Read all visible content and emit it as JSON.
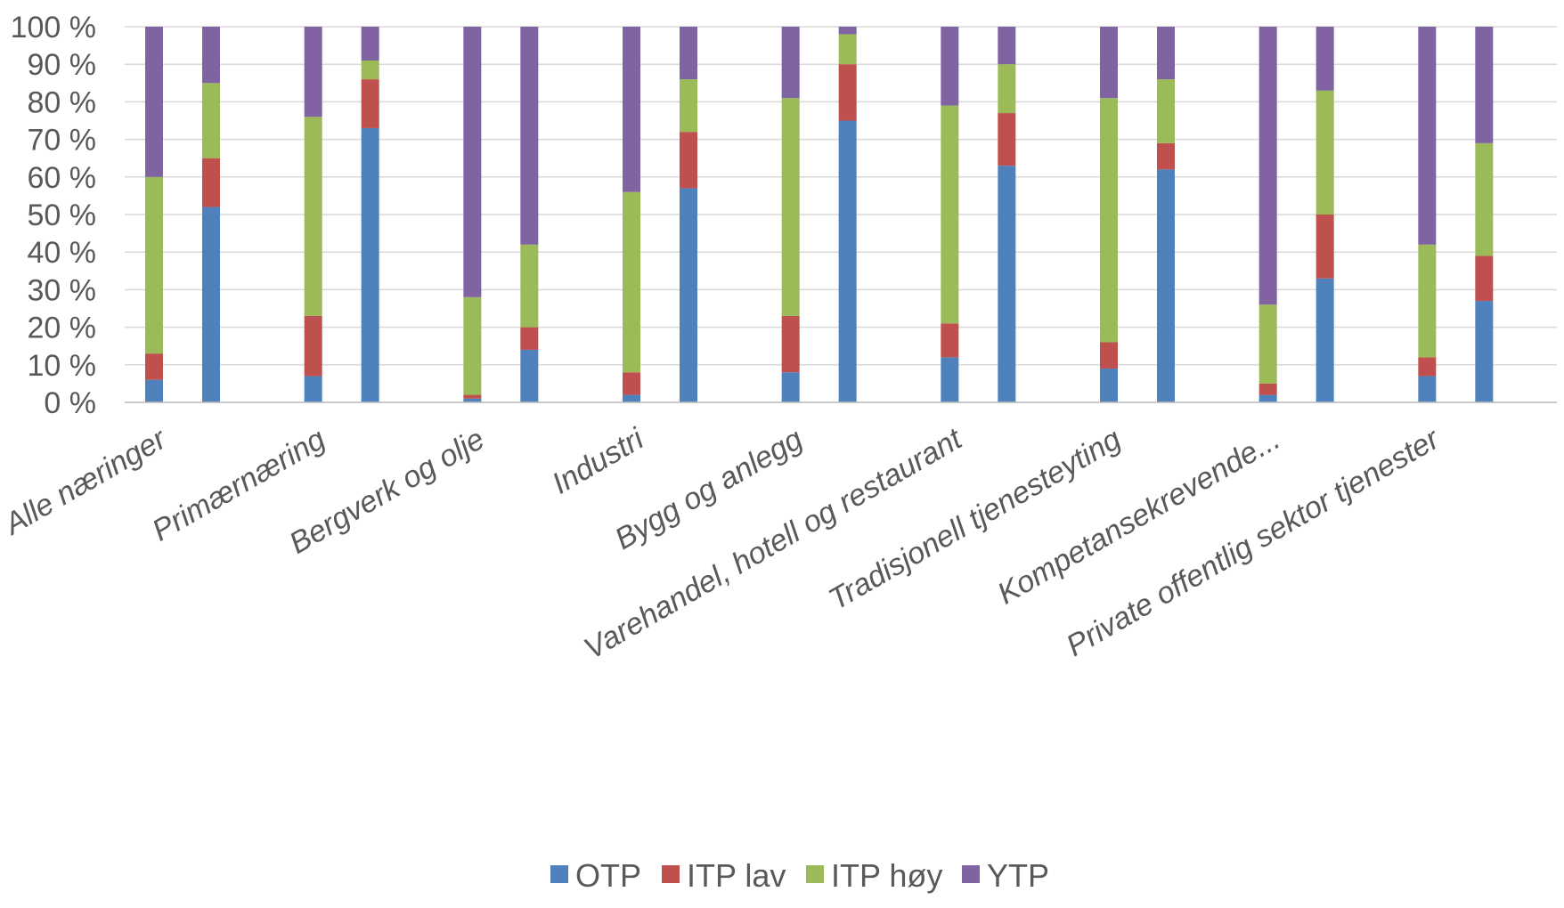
{
  "chart_data": {
    "type": "bar",
    "stacked": true,
    "title": "",
    "xlabel": "",
    "ylabel": "",
    "ylim": [
      0,
      100
    ],
    "yticks": [
      "0 %",
      "10 %",
      "20 %",
      "30 %",
      "40 %",
      "50 %",
      "60 %",
      "70 %",
      "80 %",
      "90 %",
      "100 %"
    ],
    "grid": true,
    "legend_position": "bottom",
    "categories": [
      "Alle næringer",
      "Primærnæring",
      "Bergverk og olje",
      "Industri",
      "Bygg og anlegg",
      "Varehandel, hotell og restaurant",
      "Tradisjonell tjenesteyting",
      "Kompetansekrevende...",
      "Private offentlig sektor tjenester"
    ],
    "bars_per_category": 2,
    "series": [
      {
        "name": "OTP",
        "color": "#4f81bd",
        "values": [
          [
            6,
            52
          ],
          [
            7,
            73
          ],
          [
            1,
            14
          ],
          [
            2,
            57
          ],
          [
            8,
            75
          ],
          [
            12,
            63
          ],
          [
            9,
            62
          ],
          [
            2,
            33
          ],
          [
            7,
            27
          ]
        ]
      },
      {
        "name": "ITP lav",
        "color": "#c0504d",
        "values": [
          [
            7,
            13
          ],
          [
            16,
            13
          ],
          [
            1,
            6
          ],
          [
            6,
            15
          ],
          [
            15,
            15
          ],
          [
            9,
            14
          ],
          [
            7,
            7
          ],
          [
            3,
            17
          ],
          [
            5,
            12
          ]
        ]
      },
      {
        "name": "ITP høy",
        "color": "#9bbb59",
        "values": [
          [
            47,
            20
          ],
          [
            53,
            5
          ],
          [
            26,
            22
          ],
          [
            48,
            14
          ],
          [
            58,
            8
          ],
          [
            58,
            13
          ],
          [
            65,
            17
          ],
          [
            21,
            33
          ],
          [
            30,
            30
          ]
        ]
      },
      {
        "name": "YTP",
        "color": "#8064a2",
        "values": [
          [
            40,
            15
          ],
          [
            24,
            9
          ],
          [
            72,
            58
          ],
          [
            44,
            14
          ],
          [
            19,
            2
          ],
          [
            21,
            10
          ],
          [
            19,
            14
          ],
          [
            74,
            17
          ],
          [
            58,
            31
          ]
        ]
      }
    ]
  }
}
